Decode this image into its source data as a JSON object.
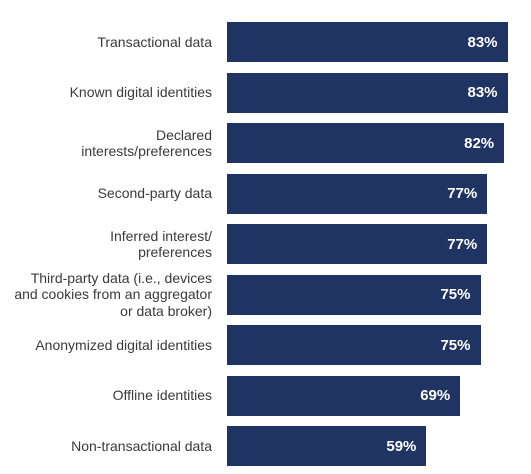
{
  "chart_data": {
    "type": "bar",
    "orientation": "horizontal",
    "categories": [
      "Transactional data",
      "Known digital identities",
      "Declared interests/preferences",
      "Second-party data",
      "Inferred interest/ preferences",
      "Third-party data (i.e., devices and cookies from an aggregator or data broker)",
      "Anonymized digital identities",
      "Offline identities",
      "Non-transactional data"
    ],
    "category_display": [
      "Transactional data",
      "Known digital identities",
      "Declared\ninterests/preferences",
      "Second-party data",
      "Inferred interest/\npreferences",
      "Third-party data (i.e., devices\nand cookies from an aggregator\nor data broker)",
      "Anonymized digital identities",
      "Offline identities",
      "Non-transactional data"
    ],
    "values": [
      83,
      83,
      82,
      77,
      77,
      75,
      75,
      69,
      59
    ],
    "value_labels": [
      "83%",
      "83%",
      "82%",
      "77%",
      "77%",
      "75%",
      "75%",
      "69%",
      "59%"
    ],
    "unit": "%",
    "xlim": [
      0,
      100
    ],
    "grid": false,
    "bar_color": "#1f3462"
  }
}
